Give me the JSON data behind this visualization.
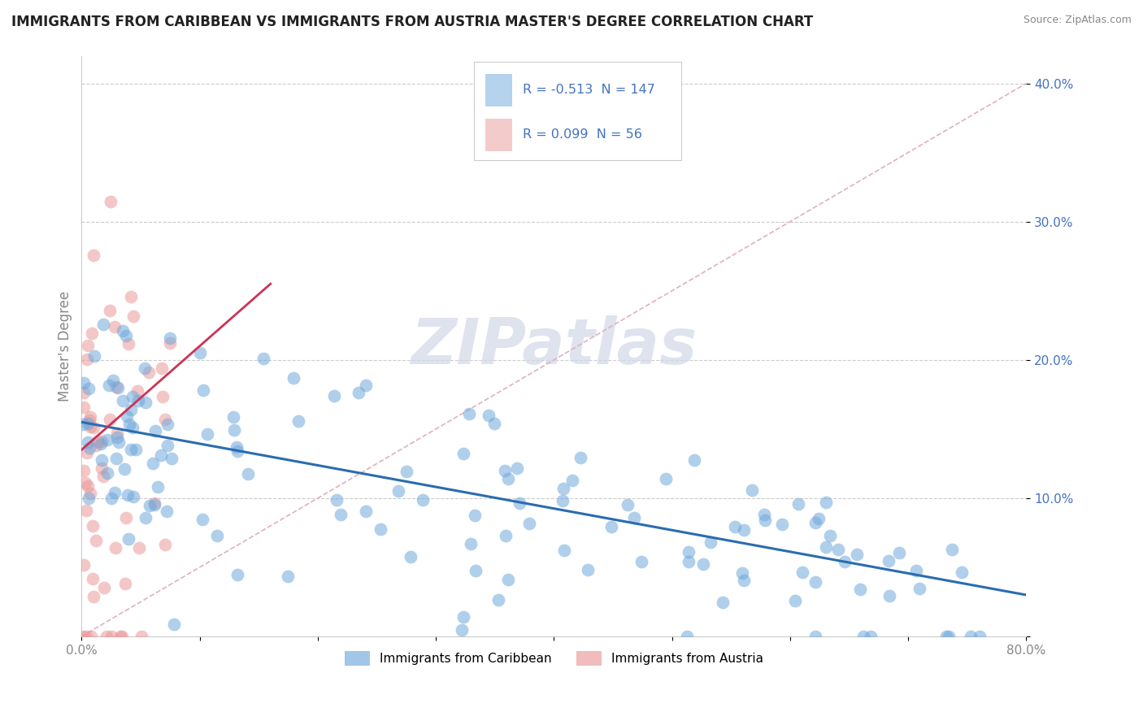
{
  "title": "IMMIGRANTS FROM CARIBBEAN VS IMMIGRANTS FROM AUSTRIA MASTER'S DEGREE CORRELATION CHART",
  "source": "Source: ZipAtlas.com",
  "ylabel": "Master's Degree",
  "xlim": [
    0.0,
    0.8
  ],
  "ylim": [
    0.0,
    0.42
  ],
  "xticks": [
    0.0,
    0.1,
    0.2,
    0.3,
    0.4,
    0.5,
    0.6,
    0.7,
    0.8
  ],
  "yticks": [
    0.0,
    0.1,
    0.2,
    0.3,
    0.4
  ],
  "caribbean_color": "#6fa8dc",
  "austria_color": "#ea9999",
  "caribbean_R": -0.513,
  "caribbean_N": 147,
  "austria_R": 0.099,
  "austria_N": 56,
  "caribbean_trend_x": [
    0.0,
    0.8
  ],
  "caribbean_trend_y": [
    0.155,
    0.03
  ],
  "austria_trend_x": [
    0.0,
    0.16
  ],
  "austria_trend_y": [
    0.135,
    0.255
  ],
  "ref_line_x": [
    0.0,
    0.8
  ],
  "ref_line_y": [
    0.0,
    0.4
  ],
  "watermark": "ZIPatlas",
  "background_color": "#ffffff",
  "legend_blue_label": "Immigrants from Caribbean",
  "legend_pink_label": "Immigrants from Austria",
  "blue_line_color": "#2b6cb0",
  "pink_line_color": "#cc3355",
  "ref_line_color": "#e0b0c0",
  "grid_color": "#cccccc",
  "axis_label_color": "#888888",
  "y_tick_color": "#4472c4",
  "x_tick_color": "#888888"
}
